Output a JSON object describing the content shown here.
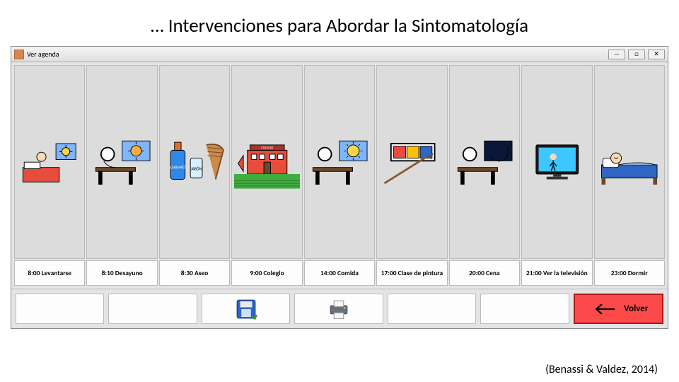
{
  "title": "… Intervenciones para Abordar la Sintomatología",
  "window_title": "Ver agenda",
  "agenda": [
    {
      "label": "8:00 Levantarse",
      "picto": "wakeup"
    },
    {
      "label": "8:10 Desayuno",
      "picto": "breakfast"
    },
    {
      "label": "8:30 Aseo",
      "picto": "hygiene"
    },
    {
      "label": "9:00 Colegio",
      "picto": "school"
    },
    {
      "label": "14:00 Comida",
      "picto": "lunch"
    },
    {
      "label": "17:00 Clase de pintura",
      "picto": "painting"
    },
    {
      "label": "20:00 Cena",
      "picto": "dinner"
    },
    {
      "label": "21:00 Ver la televisión",
      "picto": "tv"
    },
    {
      "label": "23:00 Dormir",
      "picto": "sleep"
    }
  ],
  "toolbar": {
    "save_label": "",
    "print_label": "",
    "back_label": "Volver"
  },
  "citation": "(Benassi & Valdez, 2014)",
  "colors": {
    "window_bg": "#e4e4e4",
    "cell_bg": "#dcdcdc",
    "label_bg": "#fdfdfd",
    "back_btn": "#fc4a4a",
    "border": "#bbbbbb"
  }
}
